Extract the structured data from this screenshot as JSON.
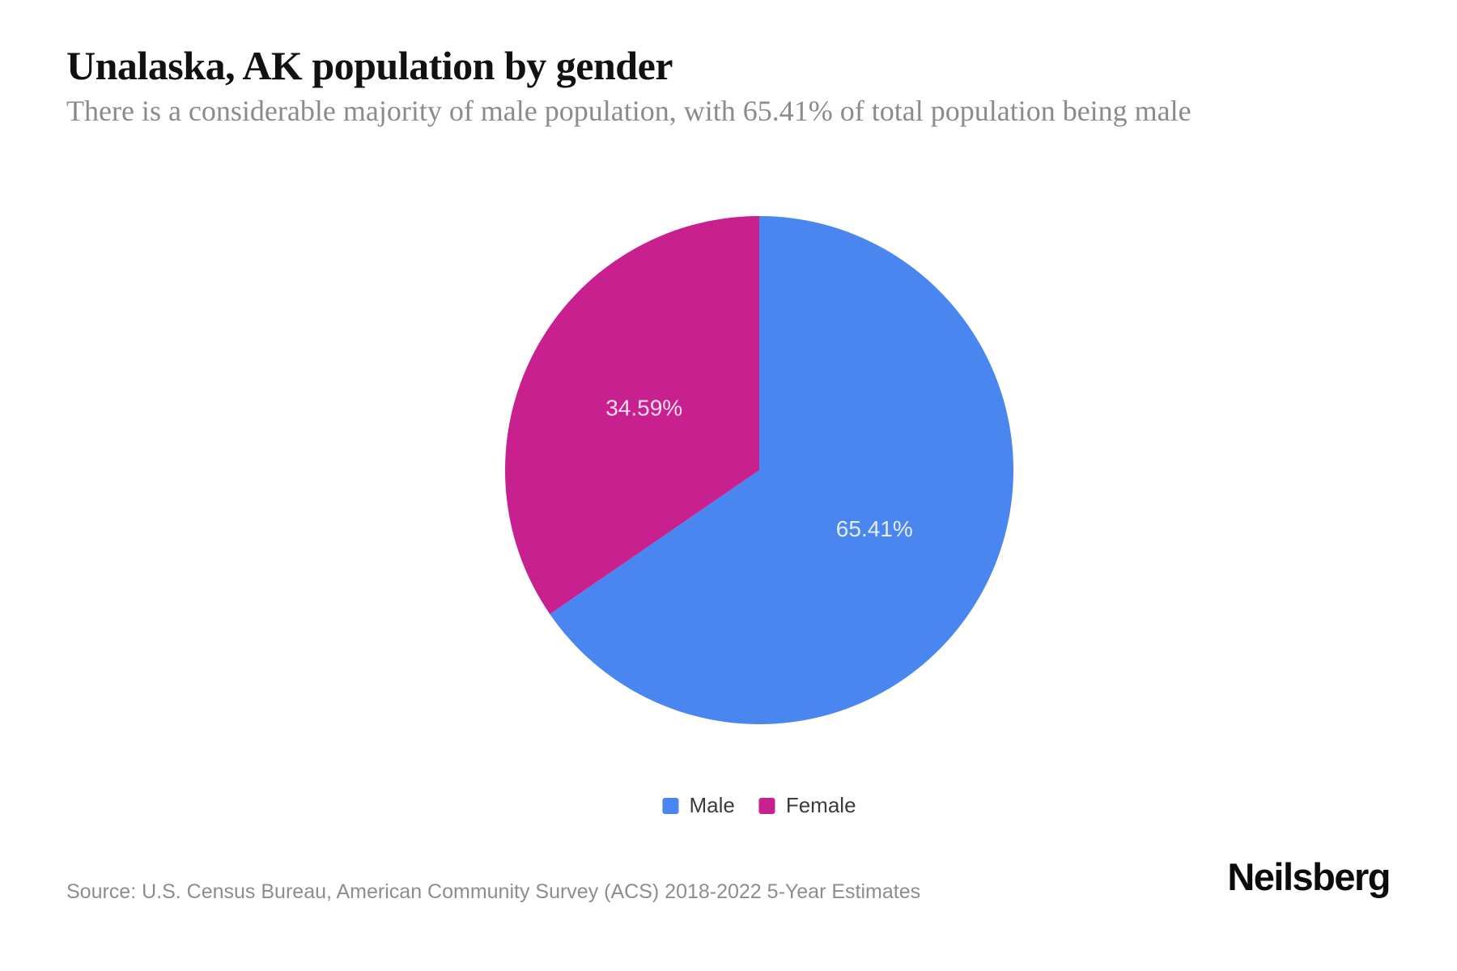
{
  "page": {
    "title": "Unalaska, AK population by gender",
    "subtitle": "There is a considerable majority of male population, with 65.41% of total population being male",
    "source": "Source: U.S. Census Bureau, American Community Survey (ACS) 2018-2022 5-Year Estimates",
    "brand": "Neilsberg"
  },
  "chart_data": {
    "type": "pie",
    "title": "Unalaska, AK population by gender",
    "categories": [
      "Male",
      "Female"
    ],
    "values": [
      65.41,
      34.59
    ],
    "slices": [
      {
        "name": "Male",
        "value": 65.41,
        "label": "65.41%",
        "color": "#4a86ef"
      },
      {
        "name": "Female",
        "value": 34.59,
        "label": "34.59%",
        "color": "#c9208f"
      }
    ],
    "start_angle_deg": 0,
    "direction": "clockwise",
    "slice_label_color": "rgba(255,255,255,0.85)",
    "legend_position": "bottom",
    "legend_entries": [
      "Male",
      "Female"
    ]
  }
}
